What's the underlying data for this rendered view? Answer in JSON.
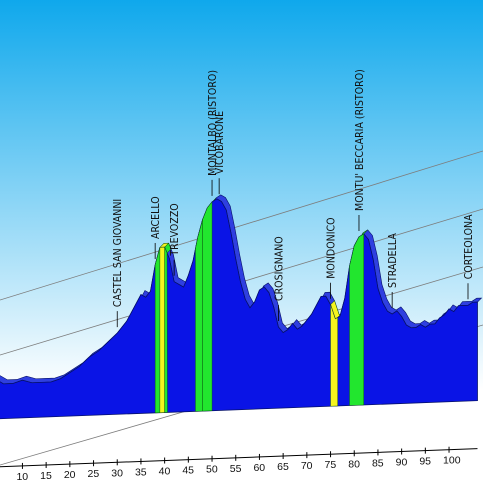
{
  "chart_data": {
    "type": "area",
    "xlabel": "",
    "ylabel": "",
    "xlim": [
      4,
      106
    ],
    "ylim": [
      0,
      100
    ],
    "x_ticks": [
      10,
      15,
      20,
      25,
      30,
      35,
      40,
      45,
      50,
      55,
      60,
      65,
      70,
      75,
      80,
      85,
      90,
      95,
      100
    ],
    "profile": [
      [
        4,
        14
      ],
      [
        6,
        12
      ],
      [
        8,
        12
      ],
      [
        10,
        13
      ],
      [
        12,
        12
      ],
      [
        14,
        12
      ],
      [
        16,
        12
      ],
      [
        18,
        13
      ],
      [
        20,
        15
      ],
      [
        22,
        17
      ],
      [
        24,
        20
      ],
      [
        26,
        22
      ],
      [
        28,
        25
      ],
      [
        30,
        28
      ],
      [
        32,
        32
      ],
      [
        34,
        38
      ],
      [
        35,
        41
      ],
      [
        36,
        40
      ],
      [
        37,
        42
      ],
      [
        38,
        51
      ],
      [
        39,
        57
      ],
      [
        40,
        57
      ],
      [
        41,
        53
      ],
      [
        42,
        45
      ],
      [
        43,
        44
      ],
      [
        44,
        43
      ],
      [
        45,
        47
      ],
      [
        46,
        52
      ],
      [
        47,
        60
      ],
      [
        48,
        66
      ],
      [
        49,
        70
      ],
      [
        50,
        72
      ],
      [
        51,
        73
      ],
      [
        52,
        72
      ],
      [
        53,
        69
      ],
      [
        54,
        61
      ],
      [
        55,
        52
      ],
      [
        56,
        44
      ],
      [
        57,
        38
      ],
      [
        58,
        35
      ],
      [
        59,
        37
      ],
      [
        60,
        41
      ],
      [
        61,
        42
      ],
      [
        62,
        40
      ],
      [
        63,
        35
      ],
      [
        64,
        28
      ],
      [
        65,
        26
      ],
      [
        66,
        27
      ],
      [
        67,
        29
      ],
      [
        68,
        27
      ],
      [
        69,
        28
      ],
      [
        70,
        30
      ],
      [
        71,
        32
      ],
      [
        72,
        35
      ],
      [
        73,
        38
      ],
      [
        74,
        38
      ],
      [
        75,
        35
      ],
      [
        76,
        30
      ],
      [
        77,
        31
      ],
      [
        78,
        37
      ],
      [
        79,
        48
      ],
      [
        80,
        55
      ],
      [
        81,
        58
      ],
      [
        82,
        59
      ],
      [
        83,
        57
      ],
      [
        84,
        50
      ],
      [
        85,
        40
      ],
      [
        86,
        35
      ],
      [
        87,
        32
      ],
      [
        88,
        31
      ],
      [
        89,
        32
      ],
      [
        90,
        30
      ],
      [
        91,
        27
      ],
      [
        92,
        26
      ],
      [
        93,
        26
      ],
      [
        94,
        27
      ],
      [
        95,
        26
      ],
      [
        96,
        27
      ],
      [
        97,
        27
      ],
      [
        98,
        29
      ],
      [
        99,
        30
      ],
      [
        100,
        32
      ],
      [
        101,
        31
      ],
      [
        102,
        33
      ],
      [
        103,
        33
      ],
      [
        104,
        33
      ],
      [
        105,
        34
      ],
      [
        106,
        34
      ]
    ],
    "climbs": [
      {
        "from": 38,
        "to": 40.6,
        "segments": [
          [
            38,
            39,
            "green"
          ],
          [
            39,
            40,
            "yellow"
          ],
          [
            40,
            40.6,
            "green"
          ]
        ]
      },
      {
        "from": 46.5,
        "to": 50,
        "segments": [
          [
            46.5,
            48,
            "green"
          ],
          [
            48,
            50,
            "green"
          ]
        ]
      },
      {
        "from": 75,
        "to": 76.5,
        "segments": [
          [
            75,
            76.5,
            "yellow"
          ]
        ]
      },
      {
        "from": 79,
        "to": 82,
        "segments": [
          [
            79,
            82,
            "green"
          ]
        ]
      }
    ],
    "places": [
      {
        "name": "CASTEL SAN GIOVANNI",
        "km": 30
      },
      {
        "name": "ARCELLO",
        "km": 38
      },
      {
        "name": "TREVOZZO",
        "km": 42
      },
      {
        "name": "MONTALBO (RISTORO)",
        "km": 50
      },
      {
        "name": "VICOBARONE",
        "km": 51.5
      },
      {
        "name": "CROSIGNANO",
        "km": 64
      },
      {
        "name": "MONDONICO",
        "km": 75
      },
      {
        "name": "MONTU' BECCARIA (RISTORO)",
        "km": 81
      },
      {
        "name": "STRADELLA",
        "km": 88
      },
      {
        "name": "CORTEOLONA",
        "km": 104
      }
    ],
    "colors": {
      "profile": "#0a14e6",
      "outline": "#05106a",
      "green": "#22e62e",
      "yellow": "#f5f51e",
      "sky_top": "#0fa8ec",
      "sky_bottom": "#ffffff",
      "grid": "#7d7d7d"
    }
  }
}
